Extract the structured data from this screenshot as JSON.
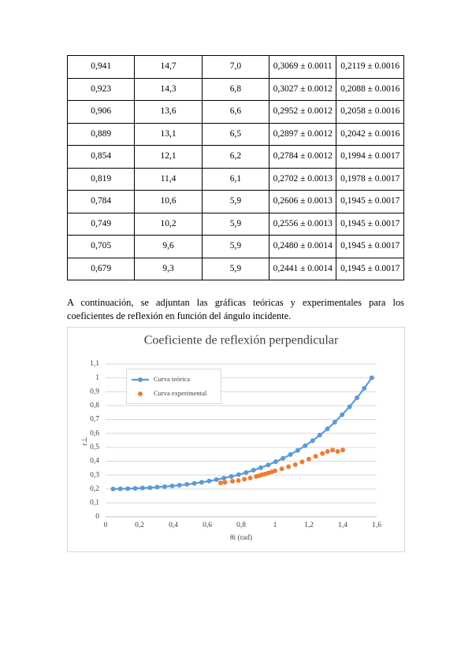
{
  "table": {
    "rows": [
      [
        "0,941",
        "14,7",
        "7,0",
        "0,3069 ± 0.0011",
        "0,2119 ± 0.0016"
      ],
      [
        "0,923",
        "14,3",
        "6,8",
        "0,3027 ± 0.0012",
        "0,2088 ± 0.0016"
      ],
      [
        "0,906",
        "13,6",
        "6,6",
        "0,2952 ± 0.0012",
        "0,2058 ± 0.0016"
      ],
      [
        "0,889",
        "13,1",
        "6,5",
        "0,2897 ± 0.0012",
        "0,2042 ± 0.0016"
      ],
      [
        "0,854",
        "12,1",
        "6,2",
        "0,2784 ± 0.0012",
        "0,1994 ± 0.0017"
      ],
      [
        "0,819",
        "11,4",
        "6,1",
        "0,2702 ± 0.0013",
        "0,1978 ± 0.0017"
      ],
      [
        "0,784",
        "10,6",
        "5,9",
        "0,2606 ± 0.0013",
        "0,1945 ± 0.0017"
      ],
      [
        "0,749",
        "10,2",
        "5,9",
        "0,2556 ± 0.0013",
        "0,1945 ± 0.0017"
      ],
      [
        "0,705",
        "9,6",
        "5,9",
        "0,2480 ± 0.0014",
        "0,1945 ± 0.0017"
      ],
      [
        "0,679",
        "9,3",
        "5,9",
        "0,2441 ± 0.0014",
        "0,1945 ± 0.0017"
      ]
    ]
  },
  "paragraph": "A continuación, se adjuntan las gráficas teóricas y experimentales para los coeficientes de reflexión en función del ángulo incidente.",
  "chart_data": {
    "type": "scatter",
    "title": "Coeficiente de reflexión perpendicular",
    "x_label": "θi (rad)",
    "y_label": "r⊥",
    "xlim": [
      0,
      1.6
    ],
    "ylim": [
      0,
      1.1
    ],
    "xticks": [
      0,
      {
        "value": 0.2,
        "label": "0,2"
      },
      {
        "value": 0.4,
        "label": "0,4"
      },
      {
        "value": 0.6,
        "label": "0,6"
      },
      {
        "value": 0.8,
        "label": "0,8"
      },
      1,
      {
        "value": 1.2,
        "label": "1,2"
      },
      {
        "value": 1.4,
        "label": "1,4"
      },
      {
        "value": 1.6,
        "label": "1,6"
      }
    ],
    "yticks": [
      0,
      {
        "value": 0.1,
        "label": "0,1"
      },
      {
        "value": 0.2,
        "label": "0,2"
      },
      {
        "value": 0.3,
        "label": "0,3"
      },
      {
        "value": 0.4,
        "label": "0,4"
      },
      {
        "value": 0.5,
        "label": "0,5"
      },
      {
        "value": 0.6,
        "label": "0,6"
      },
      {
        "value": 0.7,
        "label": "0,7"
      },
      {
        "value": 0.8,
        "label": "0,8"
      },
      {
        "value": 0.9,
        "label": "0,9"
      },
      1,
      {
        "value": 1.1,
        "label": "1,1"
      }
    ],
    "grid": true,
    "series": [
      {
        "name": "Curva teórica",
        "color": "#5b9bd5",
        "mode": "lines+markers",
        "x": [
          0.044,
          0.087,
          0.131,
          0.175,
          0.218,
          0.262,
          0.305,
          0.349,
          0.393,
          0.436,
          0.48,
          0.524,
          0.567,
          0.611,
          0.654,
          0.698,
          0.742,
          0.785,
          0.829,
          0.873,
          0.916,
          0.96,
          1.004,
          1.047,
          1.091,
          1.134,
          1.178,
          1.222,
          1.265,
          1.309,
          1.353,
          1.396,
          1.44,
          1.484,
          1.527,
          1.571
        ],
        "values": [
          0.2,
          0.201,
          0.202,
          0.204,
          0.207,
          0.209,
          0.213,
          0.217,
          0.222,
          0.227,
          0.233,
          0.24,
          0.248,
          0.257,
          0.267,
          0.278,
          0.29,
          0.303,
          0.318,
          0.335,
          0.353,
          0.373,
          0.396,
          0.42,
          0.448,
          0.478,
          0.511,
          0.547,
          0.588,
          0.632,
          0.681,
          0.734,
          0.792,
          0.856,
          0.925,
          1
        ]
      },
      {
        "name": "Curva experimental",
        "color": "#ed7d31",
        "mode": "markers",
        "x": [
          0.679,
          0.705,
          0.749,
          0.784,
          0.819,
          0.854,
          0.889,
          0.906,
          0.923,
          0.941,
          0.96,
          0.98,
          1.0,
          1.04,
          1.08,
          1.12,
          1.16,
          1.2,
          1.24,
          1.28,
          1.31,
          1.34,
          1.37,
          1.4
        ],
        "values": [
          0.2441,
          0.248,
          0.2556,
          0.2606,
          0.2702,
          0.2784,
          0.2897,
          0.2952,
          0.3027,
          0.3069,
          0.315,
          0.322,
          0.33,
          0.345,
          0.36,
          0.375,
          0.395,
          0.415,
          0.435,
          0.455,
          0.47,
          0.48,
          0.47,
          0.48
        ]
      }
    ]
  }
}
